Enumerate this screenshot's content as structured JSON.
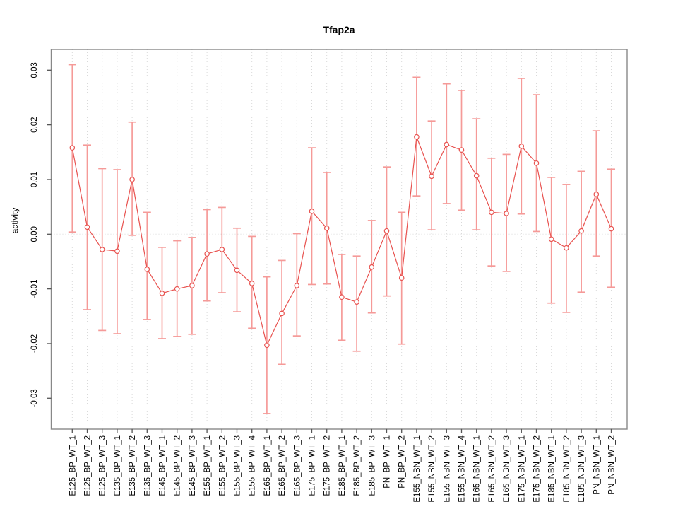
{
  "figure": {
    "title": "Tfap2a",
    "ylabel": "activity"
  },
  "chart_data": {
    "type": "line",
    "title": "Tfap2a",
    "xlabel": "",
    "ylabel": "activity",
    "ylim": [
      -0.0357,
      0.0338
    ],
    "yticks": [
      "-0.03",
      "-0.02",
      "-0.01",
      "0.00",
      "0.01",
      "0.02",
      "0.03"
    ],
    "ytick_values": [
      -0.03,
      -0.02,
      -0.01,
      0.0,
      0.01,
      0.02,
      0.03
    ],
    "grid": "dotted vertical gridline at each category; dotted horizontal line at zero",
    "legend_position": "none",
    "point_style": "open-circle with error bars, connected by lines",
    "categories": [
      "E125_BP_WT_1",
      "E125_BP_WT_2",
      "E125_BP_WT_3",
      "E135_BP_WT_1",
      "E135_BP_WT_2",
      "E135_BP_WT_3",
      "E145_BP_WT_1",
      "E145_BP_WT_2",
      "E145_BP_WT_3",
      "E155_BP_WT_1",
      "E155_BP_WT_2",
      "E155_BP_WT_3",
      "E155_BP_WT_4",
      "E165_BP_WT_1",
      "E165_BP_WT_2",
      "E165_BP_WT_3",
      "E175_BP_WT_1",
      "E175_BP_WT_2",
      "E185_BP_WT_1",
      "E185_BP_WT_2",
      "E185_BP_WT_3",
      "PN_BP_WT_1",
      "PN_BP_WT_2",
      "E155_NBN_WT_1",
      "E155_NBN_WT_2",
      "E155_NBN_WT_3",
      "E155_NBN_WT_4",
      "E165_NBN_WT_1",
      "E165_NBN_WT_2",
      "E165_NBN_WT_3",
      "E175_NBN_WT_1",
      "E175_NBN_WT_2",
      "E185_NBN_WT_1",
      "E185_NBN_WT_2",
      "E185_NBN_WT_3",
      "PN_NBN_WT_1",
      "PN_NBN_WT_2"
    ],
    "series": [
      {
        "name": "activity",
        "values": [
          0.0158,
          0.0013,
          -0.0028,
          -0.0031,
          0.01,
          -0.0064,
          -0.0108,
          -0.01,
          -0.0094,
          -0.0036,
          -0.0028,
          -0.0066,
          -0.009,
          -0.0203,
          -0.0145,
          -0.0094,
          0.0042,
          0.0011,
          -0.0115,
          -0.0124,
          -0.006,
          0.0006,
          -0.008,
          0.0178,
          0.0106,
          0.0164,
          0.0154,
          0.0107,
          0.004,
          0.0038,
          0.0161,
          0.013,
          -0.0009,
          -0.0025,
          0.0006,
          0.0073,
          0.001
        ],
        "err_low": [
          0.0004,
          -0.0138,
          -0.0176,
          -0.0182,
          -0.0002,
          -0.0156,
          -0.0191,
          -0.0187,
          -0.0183,
          -0.0122,
          -0.0107,
          -0.0142,
          -0.0172,
          -0.0328,
          -0.0238,
          -0.0186,
          -0.0092,
          -0.0091,
          -0.0194,
          -0.0214,
          -0.0144,
          -0.0113,
          -0.0201,
          0.007,
          0.0008,
          0.0056,
          0.0044,
          0.0008,
          -0.0058,
          -0.0068,
          0.0037,
          0.0005,
          -0.0126,
          -0.0143,
          -0.0106,
          -0.004,
          -0.0097
        ],
        "err_high": [
          0.031,
          0.0163,
          0.012,
          0.0118,
          0.0205,
          0.004,
          -0.0024,
          -0.0012,
          -0.0006,
          0.0045,
          0.0049,
          0.0011,
          -0.0004,
          -0.0078,
          -0.0048,
          0.0001,
          0.0158,
          0.0113,
          -0.0037,
          -0.004,
          0.0025,
          0.0123,
          0.004,
          0.0287,
          0.0207,
          0.0275,
          0.0263,
          0.0211,
          0.0139,
          0.0146,
          0.0285,
          0.0255,
          0.0104,
          0.0091,
          0.0115,
          0.0189,
          0.0119
        ]
      }
    ],
    "colors": {
      "line": "#e8524f",
      "point": "#e8524f",
      "error_bar": "#f59a98",
      "grid": "#d9d9d9",
      "box": "#888888",
      "tick": "#555555",
      "text": "#000000",
      "background": "#ffffff"
    }
  }
}
